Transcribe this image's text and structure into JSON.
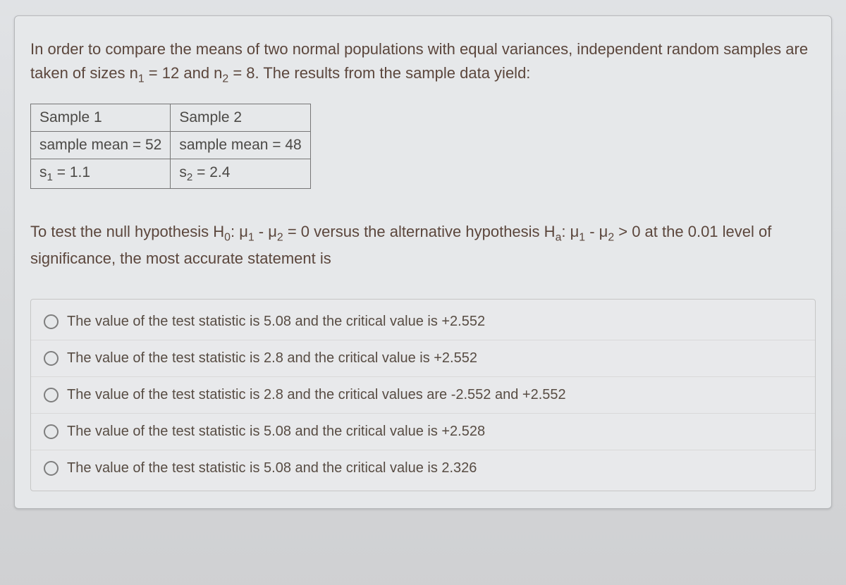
{
  "intro": {
    "part1": "In order to compare the means of two normal populations with equal variances, independent random samples are taken of sizes n",
    "n1_sub": "1",
    "n1_eq": " = 12 and n",
    "n2_sub": "2",
    "n2_eq": " = 8.  The results from the sample data yield:"
  },
  "table": {
    "h1": "Sample 1",
    "h2": "Sample 2",
    "r2c1": "sample mean = 52",
    "r2c2": "sample mean = 48",
    "s1_label": "s",
    "s1_sub": "1",
    "s1_val": " = 1.1",
    "s2_label": "s",
    "s2_sub": "2",
    "s2_val": " = 2.4"
  },
  "hypothesis": {
    "lead": "To test the null hypothesis H",
    "h0_sub": "0",
    "h0_mid": ": μ",
    "mu1_sub": "1",
    "minus": " - μ",
    "mu2_sub": "2",
    "eq0": " = 0 versus the alternative hypothesis H",
    "ha_sub": "a",
    "ha_mid": ": μ",
    "mu1b_sub": "1",
    "minus2": " - μ",
    "mu2b_sub": "2",
    "gt": " > 0 at the 0.01 level of significance, the most accurate statement is"
  },
  "options": {
    "a": "The value of the test statistic is 5.08 and the critical value is +2.552",
    "b": "The value of the test statistic is 2.8 and the critical value is +2.552",
    "c": "The value of the test statistic is 2.8 and the critical values are -2.552 and +2.552",
    "d": "The value of the test statistic is 5.08 and the critical value is +2.528",
    "e": "The value of the test statistic is 5.08 and the critical value is 2.326"
  },
  "colors": {
    "text": "#5b463c",
    "border": "#767676",
    "panel_bg": "#e6e8ea",
    "page_bg_top": "#e0e2e5",
    "page_bg_bottom": "#cfd0d2"
  }
}
